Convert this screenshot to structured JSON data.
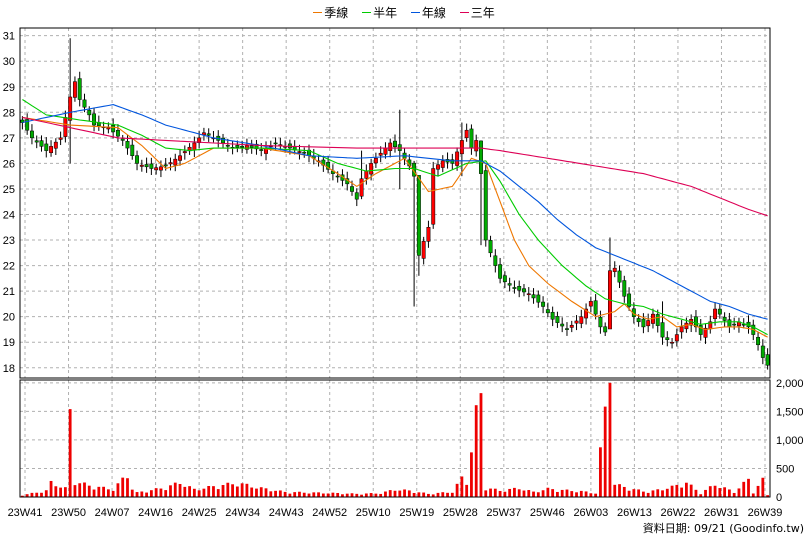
{
  "legend": [
    {
      "name": "季線",
      "color": "#ee7700"
    },
    {
      "name": "半年",
      "color": "#00cc00"
    },
    {
      "name": "年線",
      "color": "#0055dd"
    },
    {
      "name": "三年",
      "color": "#dd0055"
    }
  ],
  "footer": {
    "label": "資料日期: 09/21",
    "source": "(Goodinfo.tw)"
  },
  "chart_data": {
    "type": "candlestick",
    "x_ticks": [
      "23W41",
      "23W50",
      "24W07",
      "24W16",
      "24W25",
      "24W34",
      "24W43",
      "24W52",
      "25W10",
      "25W19",
      "25W28",
      "25W37",
      "25W46",
      "26W03",
      "26W13",
      "26W22",
      "26W31",
      "26W39"
    ],
    "price_ticks": [
      18,
      19,
      20,
      21,
      22,
      23,
      24,
      25,
      26,
      27,
      28,
      29,
      30,
      31
    ],
    "price_ylim": [
      17.6,
      31.3
    ],
    "volume_ticks": [
      "2,000",
      "1,500",
      "1,000",
      "500",
      "0"
    ],
    "volume_tick_values": [
      2000,
      1500,
      1000,
      500,
      0
    ],
    "volume_ylim": [
      0,
      2050
    ],
    "grid": true,
    "legend_placement": "top-center",
    "candle_up_color": "#ff0000",
    "candle_down_color": "#00aa00",
    "volume_color": "#ee0000",
    "weeks": 157,
    "close_keypoints": [
      [
        0,
        27.6
      ],
      [
        2,
        27.0
      ],
      [
        5,
        26.5
      ],
      [
        8,
        27.0
      ],
      [
        10,
        28.6
      ],
      [
        11,
        29.2
      ],
      [
        12,
        28.5
      ],
      [
        14,
        27.9
      ],
      [
        15,
        27.5
      ],
      [
        18,
        27.4
      ],
      [
        21,
        26.9
      ],
      [
        24,
        26.0
      ],
      [
        27,
        25.8
      ],
      [
        30,
        25.9
      ],
      [
        33,
        26.3
      ],
      [
        36,
        26.8
      ],
      [
        38,
        27.2
      ],
      [
        41,
        26.9
      ],
      [
        44,
        26.6
      ],
      [
        47,
        26.7
      ],
      [
        50,
        26.5
      ],
      [
        53,
        26.8
      ],
      [
        56,
        26.6
      ],
      [
        59,
        26.4
      ],
      [
        62,
        26.1
      ],
      [
        65,
        25.6
      ],
      [
        68,
        25.2
      ],
      [
        70,
        24.6
      ],
      [
        71,
        25.4
      ],
      [
        73,
        26.0
      ],
      [
        75,
        26.4
      ],
      [
        77,
        26.8
      ],
      [
        79,
        26.5
      ],
      [
        81,
        25.9
      ],
      [
        82,
        25.5
      ],
      [
        83,
        22.4
      ],
      [
        85,
        23.5
      ],
      [
        86,
        25.8
      ],
      [
        88,
        26.1
      ],
      [
        90,
        26.0
      ],
      [
        92,
        26.9
      ],
      [
        93,
        27.3
      ],
      [
        94,
        26.6
      ],
      [
        95,
        26.9
      ],
      [
        96,
        25.6
      ],
      [
        97,
        23.0
      ],
      [
        98,
        22.5
      ],
      [
        100,
        21.5
      ],
      [
        103,
        21.1
      ],
      [
        106,
        20.9
      ],
      [
        109,
        20.4
      ],
      [
        111,
        19.9
      ],
      [
        114,
        19.5
      ],
      [
        117,
        20.0
      ],
      [
        119,
        20.6
      ],
      [
        121,
        19.6
      ],
      [
        122,
        19.4
      ],
      [
        123,
        21.8
      ],
      [
        124,
        21.9
      ],
      [
        126,
        20.8
      ],
      [
        128,
        20.0
      ],
      [
        130,
        19.6
      ],
      [
        132,
        20.1
      ],
      [
        134,
        19.2
      ],
      [
        136,
        19.0
      ],
      [
        138,
        19.6
      ],
      [
        140,
        19.9
      ],
      [
        142,
        19.3
      ],
      [
        144,
        19.8
      ],
      [
        145,
        20.3
      ],
      [
        146,
        20.1
      ],
      [
        148,
        19.6
      ],
      [
        150,
        19.8
      ],
      [
        152,
        19.6
      ],
      [
        153,
        19.3
      ],
      [
        154,
        18.9
      ],
      [
        155,
        18.4
      ],
      [
        156,
        18.1
      ]
    ],
    "spike_weeks": {
      "10": {
        "low": 26.0,
        "high": 30.9
      },
      "71": {
        "low": 24.6,
        "high": 26.5
      },
      "79": {
        "low": 25.0,
        "high": 28.1
      },
      "82": {
        "low": 20.4,
        "high": 26.1
      },
      "83": {
        "low": 21.6,
        "high": 24.3
      },
      "92": {
        "low": 25.5,
        "high": 27.6
      },
      "96": {
        "low": 22.8,
        "high": 26.9
      },
      "123": {
        "low": 19.6,
        "high": 23.1
      },
      "134": {
        "low": 18.9,
        "high": 20.6
      }
    },
    "volume_keypoints": [
      [
        0,
        30
      ],
      [
        5,
        100
      ],
      [
        6,
        230
      ],
      [
        9,
        140
      ],
      [
        10,
        1540
      ],
      [
        11,
        250
      ],
      [
        14,
        180
      ],
      [
        19,
        120
      ],
      [
        22,
        360
      ],
      [
        23,
        130
      ],
      [
        24,
        70
      ],
      [
        30,
        150
      ],
      [
        33,
        230
      ],
      [
        36,
        120
      ],
      [
        42,
        190
      ],
      [
        45,
        220
      ],
      [
        50,
        140
      ],
      [
        55,
        80
      ],
      [
        60,
        70
      ],
      [
        66,
        60
      ],
      [
        70,
        50
      ],
      [
        75,
        60
      ],
      [
        78,
        120
      ],
      [
        81,
        100
      ],
      [
        85,
        50
      ],
      [
        90,
        80
      ],
      [
        92,
        300
      ],
      [
        93,
        240
      ],
      [
        96,
        1820
      ],
      [
        97,
        150
      ],
      [
        100,
        100
      ],
      [
        104,
        140
      ],
      [
        107,
        80
      ],
      [
        110,
        130
      ],
      [
        113,
        110
      ],
      [
        117,
        90
      ],
      [
        120,
        60
      ],
      [
        123,
        2000
      ],
      [
        124,
        200
      ],
      [
        128,
        120
      ],
      [
        131,
        80
      ],
      [
        136,
        160
      ],
      [
        139,
        230
      ],
      [
        142,
        60
      ],
      [
        145,
        200
      ],
      [
        149,
        80
      ],
      [
        152,
        280
      ],
      [
        153,
        80
      ],
      [
        155,
        270
      ],
      [
        156,
        30
      ]
    ],
    "series": [
      {
        "name": "季線",
        "color": "#ee7700",
        "points": [
          [
            0,
            27.8
          ],
          [
            10,
            27.5
          ],
          [
            20,
            27.4
          ],
          [
            25,
            26.7
          ],
          [
            30,
            25.8
          ],
          [
            34,
            26.0
          ],
          [
            40,
            26.6
          ],
          [
            50,
            26.6
          ],
          [
            60,
            26.3
          ],
          [
            66,
            25.6
          ],
          [
            70,
            25.1
          ],
          [
            74,
            25.6
          ],
          [
            80,
            26.2
          ],
          [
            85,
            24.9
          ],
          [
            90,
            25.1
          ],
          [
            94,
            26.2
          ],
          [
            97,
            26.0
          ],
          [
            100,
            24.5
          ],
          [
            103,
            23.0
          ],
          [
            106,
            22.0
          ],
          [
            110,
            21.3
          ],
          [
            115,
            20.6
          ],
          [
            120,
            20.0
          ],
          [
            124,
            20.2
          ],
          [
            126,
            20.5
          ],
          [
            128,
            20.1
          ],
          [
            131,
            19.9
          ],
          [
            134,
            20.0
          ],
          [
            137,
            19.6
          ],
          [
            140,
            19.7
          ],
          [
            143,
            19.5
          ],
          [
            147,
            19.6
          ],
          [
            150,
            19.6
          ],
          [
            153,
            19.5
          ],
          [
            156,
            19.2
          ]
        ]
      },
      {
        "name": "半年",
        "color": "#00cc00",
        "points": [
          [
            0,
            28.5
          ],
          [
            5,
            27.9
          ],
          [
            12,
            27.7
          ],
          [
            20,
            27.5
          ],
          [
            25,
            27.1
          ],
          [
            30,
            26.6
          ],
          [
            35,
            26.5
          ],
          [
            40,
            26.6
          ],
          [
            50,
            26.6
          ],
          [
            60,
            26.5
          ],
          [
            66,
            26.0
          ],
          [
            72,
            25.7
          ],
          [
            78,
            25.8
          ],
          [
            82,
            25.8
          ],
          [
            87,
            25.5
          ],
          [
            93,
            26.0
          ],
          [
            97,
            26.1
          ],
          [
            100,
            25.3
          ],
          [
            104,
            24.0
          ],
          [
            108,
            23.0
          ],
          [
            113,
            22.0
          ],
          [
            118,
            21.2
          ],
          [
            122,
            20.7
          ],
          [
            126,
            20.5
          ],
          [
            130,
            20.4
          ],
          [
            134,
            20.1
          ],
          [
            138,
            19.9
          ],
          [
            142,
            19.7
          ],
          [
            146,
            19.8
          ],
          [
            150,
            19.8
          ],
          [
            153,
            19.6
          ],
          [
            156,
            19.3
          ]
        ]
      },
      {
        "name": "年線",
        "color": "#0055dd",
        "points": [
          [
            0,
            27.6
          ],
          [
            10,
            28.0
          ],
          [
            19,
            28.3
          ],
          [
            25,
            27.9
          ],
          [
            30,
            27.5
          ],
          [
            40,
            27.0
          ],
          [
            50,
            26.7
          ],
          [
            60,
            26.3
          ],
          [
            70,
            26.2
          ],
          [
            80,
            26.3
          ],
          [
            90,
            26.1
          ],
          [
            96,
            26.1
          ],
          [
            100,
            25.7
          ],
          [
            104,
            25.1
          ],
          [
            108,
            24.5
          ],
          [
            112,
            23.8
          ],
          [
            116,
            23.2
          ],
          [
            120,
            22.7
          ],
          [
            124,
            22.4
          ],
          [
            128,
            22.1
          ],
          [
            132,
            21.8
          ],
          [
            136,
            21.4
          ],
          [
            140,
            21.0
          ],
          [
            144,
            20.6
          ],
          [
            148,
            20.4
          ],
          [
            152,
            20.1
          ],
          [
            156,
            19.9
          ]
        ]
      },
      {
        "name": "三年",
        "color": "#dd0055",
        "points": [
          [
            0,
            27.8
          ],
          [
            10,
            27.4
          ],
          [
            20,
            27.0
          ],
          [
            30,
            26.9
          ],
          [
            40,
            26.8
          ],
          [
            50,
            26.7
          ],
          [
            60,
            26.65
          ],
          [
            70,
            26.6
          ],
          [
            80,
            26.6
          ],
          [
            90,
            26.6
          ],
          [
            96,
            26.6
          ],
          [
            100,
            26.5
          ],
          [
            110,
            26.2
          ],
          [
            120,
            25.9
          ],
          [
            130,
            25.6
          ],
          [
            140,
            25.1
          ],
          [
            148,
            24.5
          ],
          [
            152,
            24.2
          ],
          [
            156,
            23.95
          ]
        ]
      }
    ]
  }
}
